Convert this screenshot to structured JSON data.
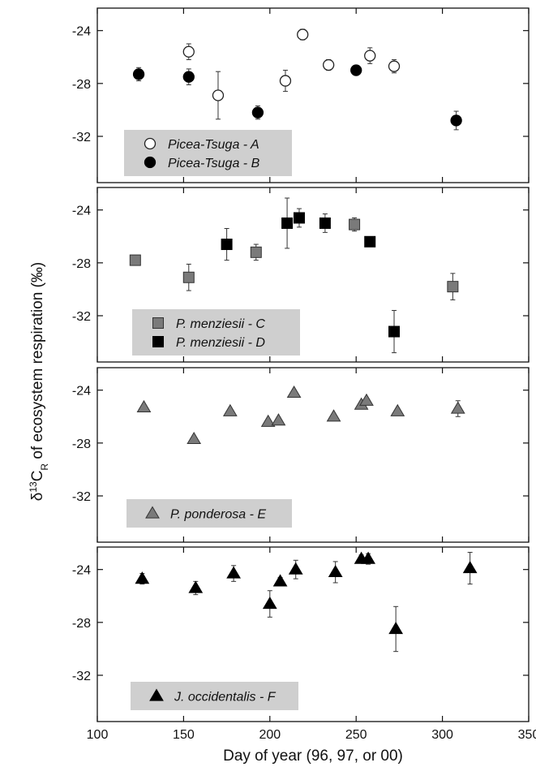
{
  "chart_data": {
    "type": "scatter",
    "xlabel": "Day of year (96, 97, or 00)",
    "ylabel": "δ13CR of ecosystem respiration (‰)",
    "ylabel_parts": {
      "prefix": "δ",
      "sup": "13",
      "main": "C",
      "sub": "R",
      "suffix": " of ecosystem respiration (‰)"
    },
    "xlim": [
      100,
      350
    ],
    "xticks": [
      100,
      150,
      200,
      250,
      300,
      350
    ],
    "ylim": [
      -35.5,
      -22.3
    ],
    "yticks": [
      -24,
      -28,
      -32
    ],
    "yaxis_inverted": true,
    "grid": false,
    "panels": [
      {
        "series": [
          {
            "name": "Picea-Tsuga - A",
            "marker": "circle",
            "fill": "#ffffff",
            "stroke": "#222222",
            "points": [
              {
                "x": 153,
                "y": -25.6,
                "err": 0.6
              },
              {
                "x": 170,
                "y": -28.9,
                "err": 1.8
              },
              {
                "x": 209,
                "y": -27.8,
                "err": 0.8
              },
              {
                "x": 219,
                "y": -24.3,
                "err": 0.4
              },
              {
                "x": 234,
                "y": -26.6,
                "err": 0.4
              },
              {
                "x": 258,
                "y": -25.9,
                "err": 0.6
              },
              {
                "x": 272,
                "y": -26.7,
                "err": 0.5
              }
            ]
          },
          {
            "name": "Picea-Tsuga - B",
            "marker": "circle",
            "fill": "#000000",
            "stroke": "#000000",
            "points": [
              {
                "x": 124,
                "y": -27.3,
                "err": 0.5
              },
              {
                "x": 153,
                "y": -27.5,
                "err": 0.6
              },
              {
                "x": 193,
                "y": -30.2,
                "err": 0.5
              },
              {
                "x": 250,
                "y": -27.0,
                "err": 0
              },
              {
                "x": 308,
                "y": -30.8,
                "err": 0.7
              }
            ]
          }
        ],
        "legend_position": "bottom-left"
      },
      {
        "series": [
          {
            "name": "P. menziesii - C",
            "marker": "square",
            "fill": "#7a7a7a",
            "stroke": "#333333",
            "points": [
              {
                "x": 122,
                "y": -27.8,
                "err": 0
              },
              {
                "x": 153,
                "y": -29.1,
                "err": 1.0
              },
              {
                "x": 192,
                "y": -27.2,
                "err": 0.6
              },
              {
                "x": 249,
                "y": -25.1,
                "err": 0.5
              },
              {
                "x": 306,
                "y": -29.8,
                "err": 1.0
              }
            ]
          },
          {
            "name": "P. menziesii - D",
            "marker": "square",
            "fill": "#000000",
            "stroke": "#000000",
            "points": [
              {
                "x": 175,
                "y": -26.6,
                "err": 1.2
              },
              {
                "x": 210,
                "y": -25.0,
                "err": 1.9
              },
              {
                "x": 217,
                "y": -24.6,
                "err": 0.7
              },
              {
                "x": 232,
                "y": -25.0,
                "err": 0.7
              },
              {
                "x": 258,
                "y": -26.4,
                "err": 0
              },
              {
                "x": 272,
                "y": -33.2,
                "err": 1.6
              }
            ]
          }
        ],
        "legend_position": "bottom-left"
      },
      {
        "series": [
          {
            "name": "P. ponderosa - E",
            "marker": "triangle",
            "fill": "#7a7a7a",
            "stroke": "#333333",
            "points": [
              {
                "x": 127,
                "y": -25.3,
                "err": 0
              },
              {
                "x": 156,
                "y": -27.7,
                "err": 0
              },
              {
                "x": 177,
                "y": -25.6,
                "err": 0
              },
              {
                "x": 199,
                "y": -26.4,
                "err": 0
              },
              {
                "x": 205,
                "y": -26.3,
                "err": 0
              },
              {
                "x": 214,
                "y": -24.2,
                "err": 0
              },
              {
                "x": 237,
                "y": -26.0,
                "err": 0
              },
              {
                "x": 253,
                "y": -25.1,
                "err": 0
              },
              {
                "x": 256,
                "y": -24.8,
                "err": 0
              },
              {
                "x": 274,
                "y": -25.6,
                "err": 0
              },
              {
                "x": 309,
                "y": -25.4,
                "err": 0.6
              }
            ]
          }
        ],
        "legend_position": "bottom-left"
      },
      {
        "series": [
          {
            "name": "J. occidentalis - F",
            "marker": "triangle",
            "fill": "#000000",
            "stroke": "#000000",
            "points": [
              {
                "x": 126,
                "y": -24.7,
                "err": 0.4
              },
              {
                "x": 157,
                "y": -25.4,
                "err": 0.5
              },
              {
                "x": 179,
                "y": -24.3,
                "err": 0.6
              },
              {
                "x": 200,
                "y": -26.6,
                "err": 1.0
              },
              {
                "x": 206,
                "y": -24.9,
                "err": 0.3
              },
              {
                "x": 215,
                "y": -24.0,
                "err": 0.7
              },
              {
                "x": 238,
                "y": -24.2,
                "err": 0.8
              },
              {
                "x": 253,
                "y": -23.2,
                "err": 0.3
              },
              {
                "x": 257,
                "y": -23.2,
                "err": 0.4
              },
              {
                "x": 273,
                "y": -28.5,
                "err": 1.7
              },
              {
                "x": 316,
                "y": -23.9,
                "err": 1.2
              }
            ]
          }
        ],
        "legend_position": "bottom-left"
      }
    ]
  },
  "colors": {
    "legend_background": "#cfcfcf",
    "axis": "#111111"
  }
}
